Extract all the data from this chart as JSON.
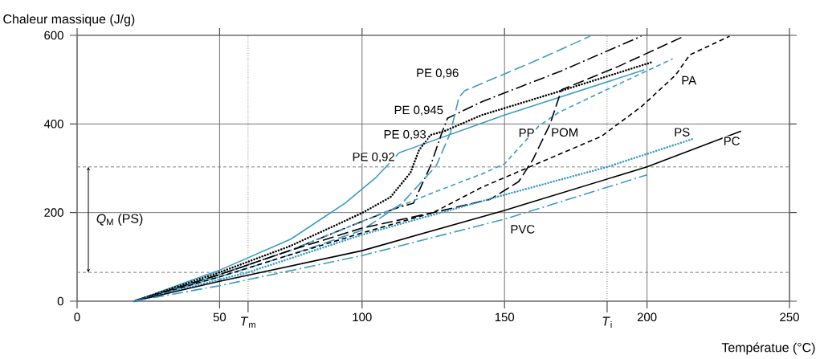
{
  "chart_data": {
    "type": "line",
    "xlabel": "Températue (°C)",
    "ylabel": "Chaleur massique (J/g)",
    "xlim": [
      0,
      250
    ],
    "ylim": [
      0,
      600
    ],
    "xticks": [
      0,
      50,
      100,
      150,
      200,
      250
    ],
    "yticks": [
      0,
      200,
      400,
      600
    ],
    "grid": true,
    "annotations": [
      "*Q*$_{M}$ (PS)"
    ],
    "ref_lines": [
      {
        "axis": "x",
        "value": 60,
        "label": "*T*$_{m}$",
        "color": "#808080",
        "line_style": "dotted"
      },
      {
        "axis": "x",
        "value": 186,
        "label": "*T*$_{i}$",
        "color": "#808080",
        "line_style": "dotted"
      },
      {
        "axis": "y",
        "value": 303,
        "color": "#808080",
        "line_style": "dashed"
      },
      {
        "axis": "y",
        "value": 65,
        "color": "#808080",
        "line_style": "dashed"
      }
    ],
    "series": [
      {
        "name": "PE 0,92",
        "color": "#3a9cc6",
        "line_style": "solid",
        "x": [
          20,
          50,
          75,
          94,
          105,
          113,
          150,
          199
        ],
        "values": [
          0,
          70,
          140,
          221,
          280,
          335,
          420,
          522
        ]
      },
      {
        "name": "PE 0,93",
        "color": "#000000",
        "line_style": "dotted",
        "x": [
          20,
          50,
          75,
          100,
          110,
          117,
          120,
          124,
          129,
          142,
          170,
          202
        ],
        "values": [
          0,
          65,
          125,
          199,
          235,
          290,
          341,
          375,
          384,
          420,
          475,
          540
        ]
      },
      {
        "name": "PE 0,945",
        "color": "#000000",
        "line_style": "dashdot",
        "x": [
          20,
          50,
          75,
          100,
          112,
          118,
          124,
          128,
          130,
          142,
          170,
          198
        ],
        "values": [
          0,
          60,
          115,
          180,
          210,
          221,
          305,
          380,
          413,
          450,
          520,
          598
        ]
      },
      {
        "name": "PE 0,96",
        "color": "#3a9cc6",
        "line_style": "longdash",
        "x": [
          20,
          50,
          75,
          100,
          114,
          126,
          131,
          134,
          136,
          160,
          180
        ],
        "values": [
          0,
          55,
          105,
          160,
          221,
          305,
          380,
          460,
          475,
          540,
          598
        ]
      },
      {
        "name": "PP",
        "color": "#3a9cc6",
        "line_style": "dashed",
        "x": [
          20,
          50,
          75,
          100,
          125,
          142,
          150,
          162,
          169,
          190,
          209
        ],
        "values": [
          0,
          60,
          115,
          180,
          245,
          287,
          310,
          395,
          426,
          490,
          547
        ]
      },
      {
        "name": "POM",
        "color": "#000000",
        "line_style": "longdash",
        "x": [
          20,
          50,
          75,
          100,
          125,
          145,
          155,
          160,
          166,
          170,
          190,
          213
        ],
        "values": [
          0,
          60,
          115,
          165,
          200,
          230,
          270,
          320,
          400,
          477,
          530,
          598
        ]
      },
      {
        "name": "PA",
        "color": "#000000",
        "line_style": "dashed",
        "x": [
          20,
          50,
          75,
          100,
          125,
          142,
          165,
          184,
          198,
          210,
          215,
          229
        ],
        "values": [
          0,
          55,
          105,
          154,
          200,
          257,
          320,
          372,
          439,
          510,
          556,
          598
        ]
      },
      {
        "name": "PS",
        "color": "#3a9cc6",
        "line_style": "dotted",
        "x": [
          20,
          60,
          100,
          150,
          186,
          216
        ],
        "values": [
          0,
          65,
          150,
          240,
          303,
          366
        ]
      },
      {
        "name": "PC",
        "color": "#000000",
        "line_style": "solid",
        "x": [
          20,
          50,
          100,
          150,
          200,
          233
        ],
        "values": [
          0,
          45,
          114,
          205,
          303,
          384
        ]
      },
      {
        "name": "PVC",
        "color": "#3a9cc6",
        "line_style": "dashdot",
        "x": [
          20,
          50,
          100,
          150,
          200
        ],
        "values": [
          0,
          35,
          103,
          185,
          285
        ]
      }
    ]
  }
}
